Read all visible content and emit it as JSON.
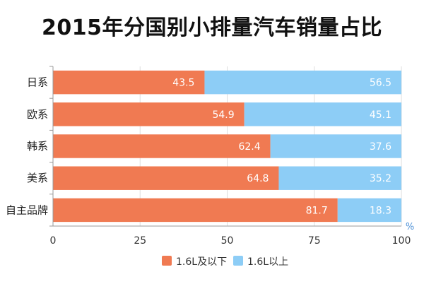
{
  "chart_data": {
    "type": "bar",
    "orientation": "horizontal",
    "stacked": true,
    "title": "2015年分国别小排量汽车销量占比",
    "categories": [
      "日系",
      "欧系",
      "韩系",
      "美系",
      "自主品牌"
    ],
    "series": [
      {
        "name": "1.6L及以下",
        "values": [
          43.5,
          54.9,
          62.4,
          64.8,
          81.7
        ],
        "color": "#f07a52"
      },
      {
        "name": "1.6L以上",
        "values": [
          56.5,
          45.1,
          37.6,
          35.2,
          18.3
        ],
        "color": "#8dcdf6"
      }
    ],
    "xlim": [
      0,
      100
    ],
    "xticks": [
      "0",
      "25",
      "50",
      "75",
      "100"
    ],
    "xunit": "%",
    "grid": true,
    "legend": "bottom-center"
  }
}
